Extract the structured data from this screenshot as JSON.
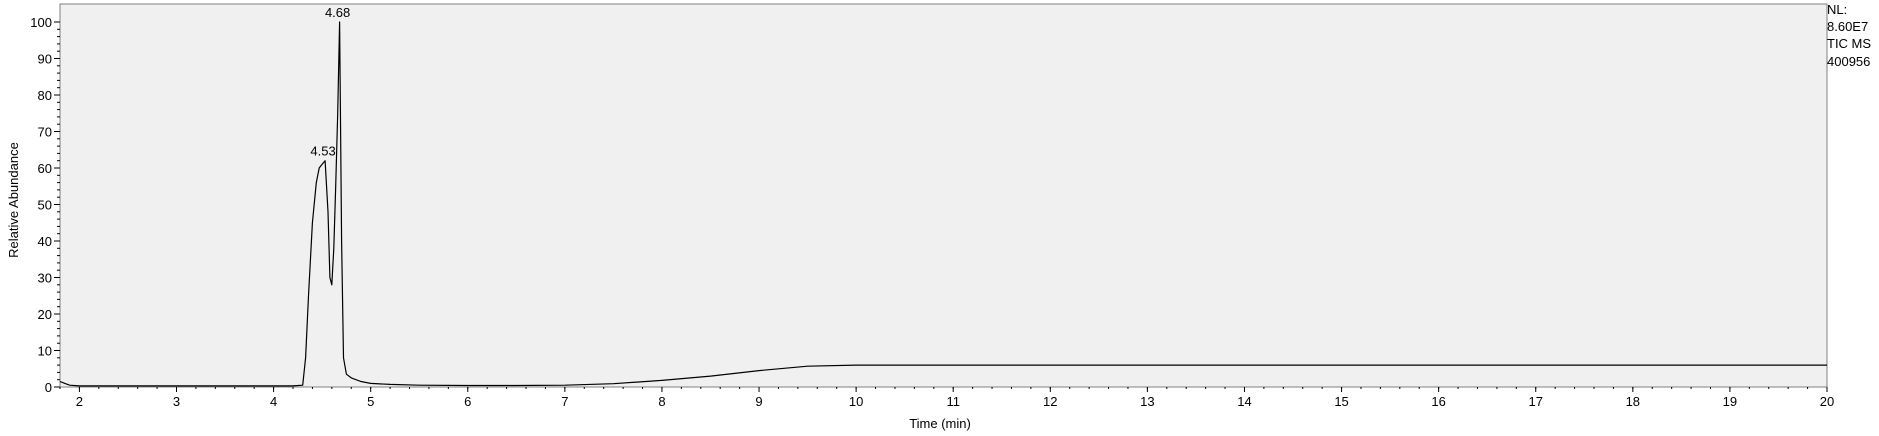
{
  "chart_data": {
    "type": "line",
    "xlabel": "Time (min)",
    "ylabel": "Relative Abundance",
    "xlim": [
      1.8,
      20
    ],
    "ylim": [
      0,
      100
    ],
    "x_ticks": [
      2,
      3,
      4,
      5,
      6,
      7,
      8,
      9,
      10,
      11,
      12,
      13,
      14,
      15,
      16,
      17,
      18,
      19,
      20
    ],
    "y_ticks": [
      0,
      10,
      20,
      30,
      40,
      50,
      60,
      70,
      80,
      90,
      100
    ],
    "grid": false,
    "series": [
      {
        "x": [
          1.8,
          1.85,
          1.9,
          2.0,
          2.5,
          3.0,
          3.5,
          4.0,
          4.2,
          4.3,
          4.33,
          4.36,
          4.4,
          4.44,
          4.47,
          4.5,
          4.53,
          4.56,
          4.58,
          4.6,
          4.62,
          4.64,
          4.66,
          4.68,
          4.7,
          4.72,
          4.75,
          4.8,
          4.9,
          5.0,
          5.2,
          5.5,
          6.0,
          6.5,
          7.0,
          7.5,
          8.0,
          8.5,
          9.0,
          9.5,
          10.0,
          11.0,
          12.0,
          13.0,
          14.0,
          15.0,
          16.0,
          17.0,
          18.0,
          19.0,
          20.0
        ],
        "y": [
          1.5,
          1.0,
          0.5,
          0.3,
          0.3,
          0.3,
          0.3,
          0.3,
          0.3,
          0.5,
          8,
          25,
          45,
          56,
          60,
          61,
          62,
          48,
          30,
          28,
          38,
          55,
          75,
          100,
          40,
          8,
          3.5,
          2.5,
          1.5,
          1.0,
          0.7,
          0.5,
          0.4,
          0.4,
          0.5,
          0.9,
          1.8,
          3.0,
          4.5,
          5.7,
          6.0,
          6.0,
          6.0,
          6.0,
          6.0,
          6.0,
          6.0,
          6.0,
          6.0,
          6.0,
          6.0
        ]
      }
    ],
    "annotations": [
      {
        "text": "4.53",
        "x": 4.53,
        "y": 62
      },
      {
        "text": "4.68",
        "x": 4.68,
        "y": 100
      }
    ],
    "info": [
      "NL:",
      "8.60E7",
      "TIC  MS",
      "400956"
    ],
    "colors": {
      "line": "#000000",
      "plot_bg": "#f0f0f0",
      "frame": "#808080"
    }
  }
}
